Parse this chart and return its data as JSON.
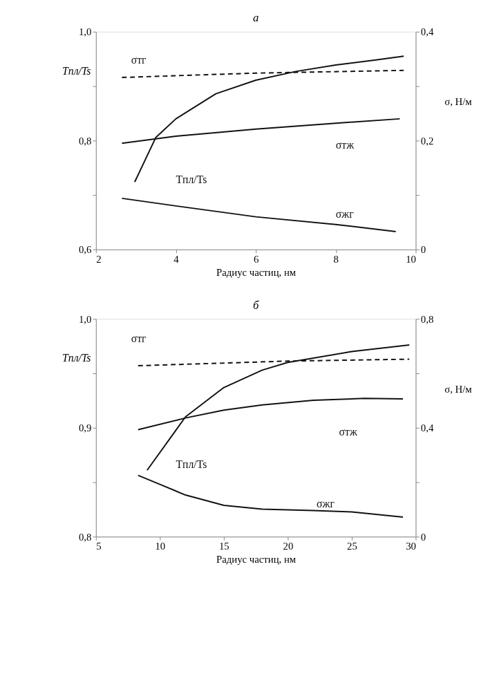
{
  "chart_data": [
    {
      "type": "line",
      "title": "а",
      "xlabel": "Радиус частиц, нм",
      "ylabel": "Tпл/Ts",
      "y2label": "σ, Н/м",
      "xlim": [
        2,
        10
      ],
      "xticks": [
        2,
        4,
        6,
        8,
        10
      ],
      "ylim": [
        0.6,
        1.0
      ],
      "yticks": [
        {
          "value": 0.6,
          "label": "0,6"
        },
        {
          "value": 0.7,
          "label": null
        },
        {
          "value": 0.8,
          "label": "0,8"
        },
        {
          "value": 0.9,
          "label": null
        },
        {
          "value": 1.0,
          "label": "1,0"
        }
      ],
      "y2lim": [
        0,
        0.4
      ],
      "y2ticks": [
        0,
        {
          "value": 0.1,
          "label": null
        },
        {
          "value": 0.2,
          "label": "0,2"
        },
        {
          "value": 0.3,
          "label": null
        },
        {
          "value": 0.4,
          "label": "0,4"
        }
      ],
      "grid": false,
      "legend": false,
      "marker": "none",
      "series": [
        {
          "color": "#111111",
          "line_style": "solid",
          "x": [
            2.97,
            3.5,
            4,
            5,
            6,
            7,
            8,
            9,
            9.7
          ],
          "values": [
            0.724,
            0.806,
            0.84,
            0.886,
            0.911,
            0.927,
            0.939,
            0.948,
            0.955
          ]
        },
        {
          "color": "#111111",
          "line_style": "dashed",
          "axis": "y2",
          "x": [
            2.65,
            6,
            9.7
          ],
          "values": [
            0.316,
            0.324,
            0.329
          ]
        },
        {
          "color": "#111111",
          "line_style": "solid",
          "axis": "y2",
          "x": [
            2.65,
            4,
            6,
            8,
            9.6
          ],
          "values": [
            0.195,
            0.208,
            0.221,
            0.232,
            0.24
          ]
        },
        {
          "color": "#111111",
          "line_style": "solid",
          "axis": "y2",
          "x": [
            2.65,
            4,
            6,
            8,
            9.5
          ],
          "values": [
            0.094,
            0.08,
            0.06,
            0.046,
            0.033
          ]
        }
      ],
      "annotations": [
        "σтг",
        "σтж",
        "Tпл/Ts",
        "σжг"
      ]
    },
    {
      "type": "line",
      "title": "б",
      "xlabel": "Радиус частиц, нм",
      "ylabel": "Tпл/Ts",
      "y2label": "σ, Н/м",
      "xlim": [
        5,
        30
      ],
      "xticks": [
        5,
        10,
        15,
        20,
        25,
        30
      ],
      "ylim": [
        0.8,
        1.0
      ],
      "yticks": [
        {
          "value": 0.8,
          "label": "0,8"
        },
        {
          "value": 0.85,
          "label": null
        },
        {
          "value": 0.9,
          "label": "0,9"
        },
        {
          "value": 0.95,
          "label": null
        },
        {
          "value": 1.0,
          "label": "1,0"
        }
      ],
      "y2lim": [
        0,
        0.8
      ],
      "y2ticks": [
        0,
        {
          "value": 0.2,
          "label": null
        },
        {
          "value": 0.4,
          "label": "0,4"
        },
        {
          "value": 0.6,
          "label": null
        },
        {
          "value": 0.8,
          "label": "0,8"
        }
      ],
      "grid": false,
      "legend": false,
      "marker": "none",
      "series": [
        {
          "color": "#111111",
          "line_style": "solid",
          "x": [
            9,
            12,
            15,
            18,
            20,
            22,
            25,
            29.5
          ],
          "values": [
            0.861,
            0.91,
            0.937,
            0.953,
            0.96,
            0.964,
            0.97,
            0.976
          ]
        },
        {
          "color": "#111111",
          "line_style": "dashed",
          "axis": "y2",
          "x": [
            8.3,
            20,
            29.5
          ],
          "values": [
            0.628,
            0.645,
            0.652
          ]
        },
        {
          "color": "#111111",
          "line_style": "solid",
          "axis": "y2",
          "x": [
            8.3,
            12,
            15,
            18,
            22,
            26,
            29
          ],
          "values": [
            0.393,
            0.436,
            0.465,
            0.484,
            0.501,
            0.508,
            0.506
          ]
        },
        {
          "color": "#111111",
          "line_style": "solid",
          "axis": "y2",
          "x": [
            8.3,
            10,
            12,
            15,
            18,
            22,
            25,
            29
          ],
          "values": [
            0.225,
            0.192,
            0.153,
            0.115,
            0.101,
            0.096,
            0.091,
            0.072
          ]
        }
      ],
      "annotations": [
        "σтг",
        "σтж",
        "Tпл/Ts",
        "σжг"
      ]
    }
  ]
}
